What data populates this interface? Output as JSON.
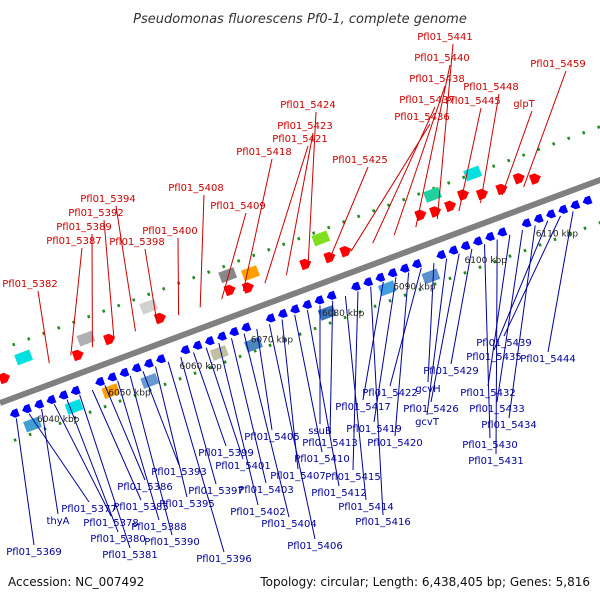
{
  "title": "Pseudomonas fluorescens Pf0-1, complete genome",
  "footer": {
    "accession": "Accession: NC_007492",
    "summary": "Topology: circular; Length: 6,438,405 bp; Genes: 5,816"
  },
  "colors": {
    "forward_label": "#cc0000",
    "reverse_label": "#000099",
    "forward_gene": "#ff0000",
    "reverse_gene": "#0000ff",
    "backbone": "#808080",
    "tick_green": "#228b22"
  },
  "ruler_labels": [
    "6040 kbp",
    "6050 kbp",
    "6060 kbp",
    "6070 kbp",
    "6080 kbp",
    "6090 kbp",
    "6100 kbp",
    "6110 kbp"
  ],
  "forward_labels": [
    "Pfl01_5382",
    "Pfl01_5387",
    "Pfl01_5389",
    "Pfl01_5392",
    "Pfl01_5394",
    "Pfl01_5398",
    "Pfl01_5400",
    "Pfl01_5408",
    "Pfl01_5409",
    "Pfl01_5418",
    "Pfl01_5421",
    "Pfl01_5423",
    "Pfl01_5424",
    "Pfl01_5425",
    "Pfl01_5436",
    "Pfl01_5437",
    "Pfl01_5438",
    "Pfl01_5440",
    "Pfl01_5441",
    "Pfl01_5445",
    "Pfl01_5448",
    "glpT",
    "Pfl01_5459"
  ],
  "reverse_labels": [
    "Pfl01_5369",
    "Pfl01_5377",
    "thyA",
    "Pfl01_5378",
    "Pfl01_5380",
    "Pfl01_5381",
    "Pfl01_5385",
    "Pfl01_5386",
    "Pfl01_5388",
    "Pfl01_5390",
    "Pfl01_5393",
    "Pfl01_5395",
    "Pfl01_5396",
    "Pfl01_5397",
    "Pfl01_5399",
    "Pfl01_5401",
    "Pfl01_5402",
    "Pfl01_5403",
    "Pfl01_5404",
    "Pfl01_5405",
    "Pfl01_5406",
    "Pfl01_5407",
    "Pfl01_5410",
    "Pfl01_5412",
    "ssuB",
    "Pfl01_5413",
    "Pfl01_5414",
    "Pfl01_5415",
    "Pfl01_5416",
    "Pfl01_5417",
    "Pfl01_5419",
    "Pfl01_5420",
    "Pfl01_5422",
    "gcvH",
    "gcvT",
    "Pfl01_5426",
    "Pfl01_5429",
    "Pfl01_5430",
    "Pfl01_5431",
    "Pfl01_5432",
    "Pfl01_5433",
    "Pfl01_5434",
    "Pfl01_5435",
    "Pfl01_5439",
    "Pfl01_5444"
  ]
}
